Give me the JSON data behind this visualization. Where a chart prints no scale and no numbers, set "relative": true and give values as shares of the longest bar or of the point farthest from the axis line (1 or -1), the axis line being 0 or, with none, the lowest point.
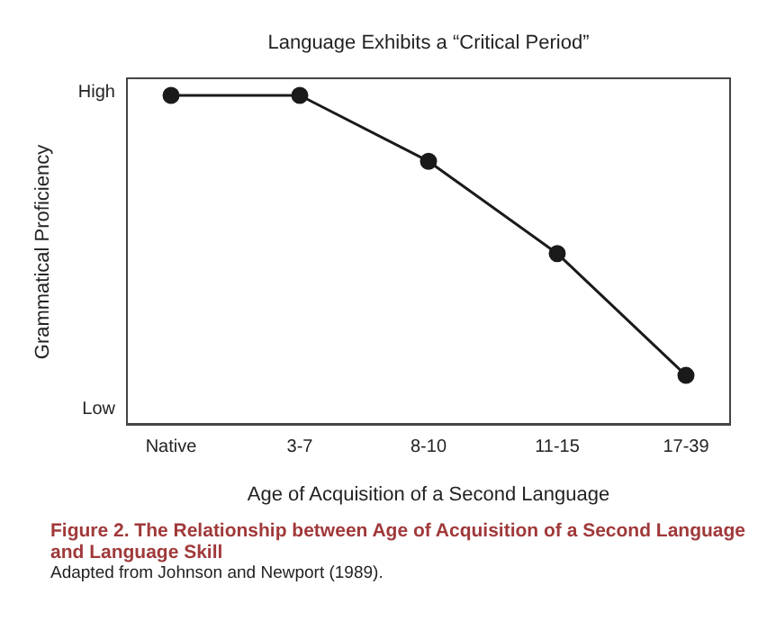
{
  "chart_data": {
    "type": "line",
    "title": "Language Exhibits a “Critical Period”",
    "xlabel": "Age of Acquisition of a Second Language",
    "ylabel": "Grammatical Proficiency",
    "categories": [
      "Native",
      "3-7",
      "8-10",
      "11-15",
      "17-39"
    ],
    "relative": true,
    "series": [
      {
        "color": "#1a1a1a",
        "values": [
          1,
          1,
          0.8,
          0.52,
          0.15
        ]
      }
    ],
    "marker": "circle",
    "line_style": "solid",
    "annotations": [
      "High",
      "Low",
      "Figure 2.  The Relationship between Age of Acquisition of a Second Language and Language Skill",
      "Adapted from Johnson and Newport (1989)."
    ]
  }
}
